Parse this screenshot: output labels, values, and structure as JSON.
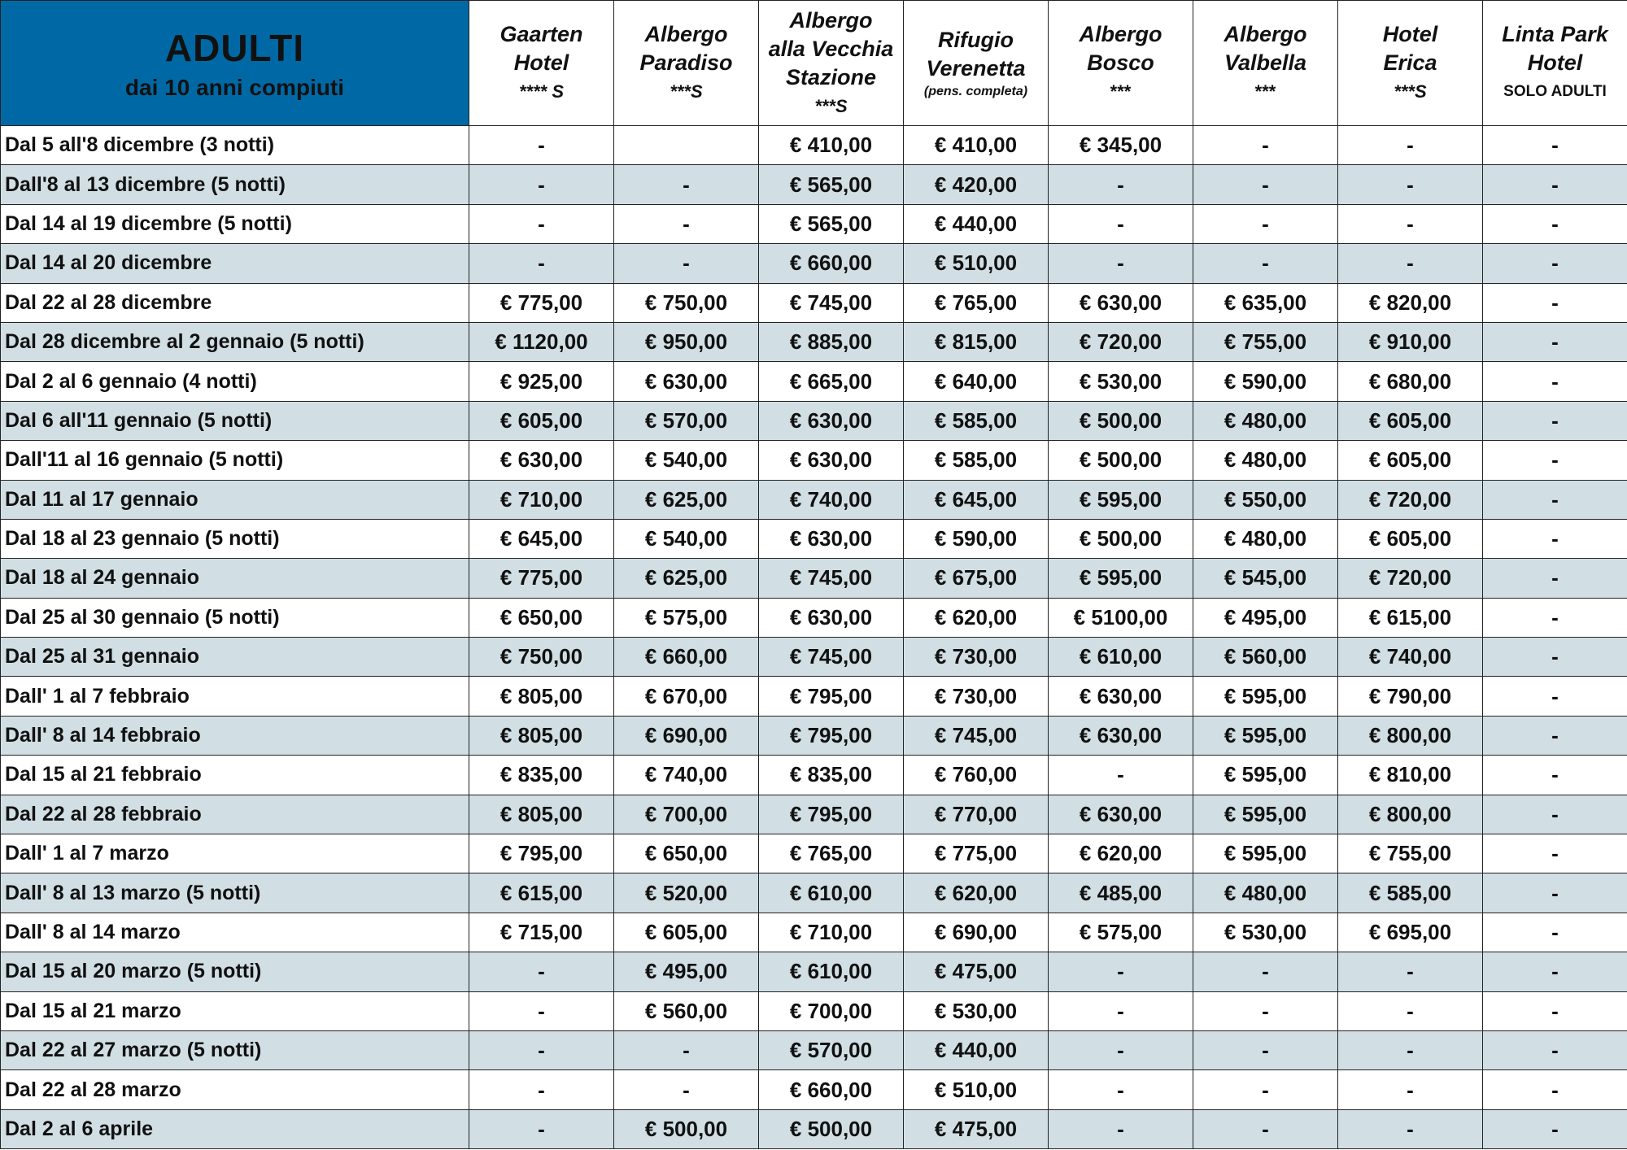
{
  "header": {
    "title": "ADULTI",
    "subtitle": "dai 10 anni compiuti"
  },
  "colors": {
    "header_bg": "#0069a5",
    "alt_row_bg": "#d1dfe4"
  },
  "hotels": [
    {
      "lines": [
        "Gaarten",
        "Hotel"
      ],
      "rating": "**** S"
    },
    {
      "lines": [
        "Albergo",
        "Paradiso"
      ],
      "rating": "***S"
    },
    {
      "lines": [
        "Albergo",
        "alla Vecchia",
        "Stazione"
      ],
      "rating": "***S"
    },
    {
      "lines": [
        "Rifugio",
        "Verenetta"
      ],
      "note": "(pens. completa)"
    },
    {
      "lines": [
        "Albergo",
        "Bosco"
      ],
      "rating": "***"
    },
    {
      "lines": [
        "Albergo",
        "Valbella"
      ],
      "rating": "***"
    },
    {
      "lines": [
        "Hotel",
        "Erica"
      ],
      "rating": "***S"
    },
    {
      "lines": [
        "Linta Park",
        "Hotel"
      ],
      "tag": "SOLO ADULTI"
    }
  ],
  "rows": [
    {
      "period": "Dal 5 all'8 dicembre (3 notti)",
      "prices": [
        "-",
        "",
        "€ 410,00",
        "€ 410,00",
        "€ 345,00",
        "-",
        "-",
        "-"
      ]
    },
    {
      "period": "Dall'8 al 13 dicembre (5 notti)",
      "prices": [
        "-",
        "-",
        "€ 565,00",
        "€ 420,00",
        "-",
        "-",
        "-",
        "-"
      ]
    },
    {
      "period": "Dal 14 al 19 dicembre (5 notti)",
      "prices": [
        "-",
        "-",
        "€ 565,00",
        "€ 440,00",
        "-",
        "-",
        "-",
        "-"
      ]
    },
    {
      "period": "Dal 14 al 20 dicembre",
      "prices": [
        "-",
        "-",
        "€ 660,00",
        "€ 510,00",
        "-",
        "-",
        "-",
        "-"
      ]
    },
    {
      "period": "Dal 22 al 28 dicembre",
      "prices": [
        "€ 775,00",
        "€ 750,00",
        "€ 745,00",
        "€ 765,00",
        "€ 630,00",
        "€ 635,00",
        "€ 820,00",
        "-"
      ]
    },
    {
      "period": "Dal 28 dicembre al 2 gennaio (5 notti)",
      "prices": [
        "€ 1120,00",
        "€ 950,00",
        "€ 885,00",
        "€ 815,00",
        "€ 720,00",
        "€ 755,00",
        "€ 910,00",
        "-"
      ]
    },
    {
      "period": "Dal 2 al 6 gennaio (4 notti)",
      "prices": [
        "€ 925,00",
        "€ 630,00",
        "€ 665,00",
        "€ 640,00",
        "€ 530,00",
        "€ 590,00",
        "€ 680,00",
        "-"
      ]
    },
    {
      "period": "Dal 6 all'11 gennaio (5 notti)",
      "prices": [
        "€ 605,00",
        "€ 570,00",
        "€ 630,00",
        "€ 585,00",
        "€ 500,00",
        "€ 480,00",
        "€ 605,00",
        "-"
      ]
    },
    {
      "period": "Dall'11 al 16 gennaio (5 notti)",
      "prices": [
        "€ 630,00",
        "€ 540,00",
        "€ 630,00",
        "€ 585,00",
        "€ 500,00",
        "€ 480,00",
        "€ 605,00",
        "-"
      ]
    },
    {
      "period": "Dal 11 al 17 gennaio",
      "prices": [
        "€ 710,00",
        "€ 625,00",
        "€ 740,00",
        "€ 645,00",
        "€ 595,00",
        "€ 550,00",
        "€ 720,00",
        "-"
      ]
    },
    {
      "period": "Dal 18 al 23 gennaio (5 notti)",
      "prices": [
        "€ 645,00",
        "€ 540,00",
        "€ 630,00",
        "€ 590,00",
        "€ 500,00",
        "€ 480,00",
        "€ 605,00",
        "-"
      ]
    },
    {
      "period": "Dal 18 al 24 gennaio",
      "prices": [
        "€ 775,00",
        "€ 625,00",
        "€ 745,00",
        "€ 675,00",
        "€ 595,00",
        "€ 545,00",
        "€ 720,00",
        "-"
      ]
    },
    {
      "period": "Dal 25 al 30 gennaio (5 notti)",
      "prices": [
        "€ 650,00",
        "€ 575,00",
        "€ 630,00",
        "€ 620,00",
        "€ 5100,00",
        "€ 495,00",
        "€ 615,00",
        "-"
      ]
    },
    {
      "period": "Dal 25 al 31 gennaio",
      "prices": [
        "€ 750,00",
        "€ 660,00",
        "€ 745,00",
        "€ 730,00",
        "€ 610,00",
        "€ 560,00",
        "€ 740,00",
        "-"
      ]
    },
    {
      "period": "Dall' 1 al 7 febbraio",
      "prices": [
        "€ 805,00",
        "€ 670,00",
        "€ 795,00",
        "€ 730,00",
        "€ 630,00",
        "€ 595,00",
        "€ 790,00",
        "-"
      ]
    },
    {
      "period": "Dall' 8 al 14 febbraio",
      "prices": [
        "€ 805,00",
        "€ 690,00",
        "€ 795,00",
        "€ 745,00",
        "€ 630,00",
        "€ 595,00",
        "€ 800,00",
        "-"
      ]
    },
    {
      "period": "Dal 15 al 21 febbraio",
      "prices": [
        "€ 835,00",
        "€ 740,00",
        "€ 835,00",
        "€ 760,00",
        "-",
        "€ 595,00",
        "€ 810,00",
        "-"
      ]
    },
    {
      "period": "Dal 22 al 28 febbraio",
      "prices": [
        "€ 805,00",
        "€ 700,00",
        "€ 795,00",
        "€ 770,00",
        "€ 630,00",
        "€ 595,00",
        "€ 800,00",
        "-"
      ]
    },
    {
      "period": "Dall' 1 al 7 marzo",
      "prices": [
        "€ 795,00",
        "€ 650,00",
        "€ 765,00",
        "€ 775,00",
        "€ 620,00",
        "€ 595,00",
        "€ 755,00",
        "-"
      ]
    },
    {
      "period": "Dall' 8 al 13 marzo (5 notti)",
      "prices": [
        "€ 615,00",
        "€ 520,00",
        "€ 610,00",
        "€ 620,00",
        "€ 485,00",
        "€ 480,00",
        "€ 585,00",
        "-"
      ]
    },
    {
      "period": "Dall' 8 al 14 marzo",
      "prices": [
        "€ 715,00",
        "€ 605,00",
        "€ 710,00",
        "€ 690,00",
        "€ 575,00",
        "€ 530,00",
        "€ 695,00",
        "-"
      ]
    },
    {
      "period": "Dal 15 al 20 marzo (5 notti)",
      "prices": [
        "-",
        "€ 495,00",
        "€ 610,00",
        "€ 475,00",
        "-",
        "-",
        "-",
        "-"
      ]
    },
    {
      "period": "Dal 15 al 21 marzo",
      "prices": [
        "-",
        "€ 560,00",
        "€ 700,00",
        "€ 530,00",
        "-",
        "-",
        "-",
        "-"
      ]
    },
    {
      "period": "Dal 22 al 27 marzo (5 notti)",
      "prices": [
        "-",
        "-",
        "€ 570,00",
        "€ 440,00",
        "-",
        "-",
        "-",
        "-"
      ]
    },
    {
      "period": "Dal 22 al 28 marzo",
      "prices": [
        "-",
        "-",
        "€ 660,00",
        "€ 510,00",
        "-",
        "-",
        "-",
        "-"
      ]
    },
    {
      "period": "Dal 2 al 6 aprile",
      "prices": [
        "-",
        "€ 500,00",
        "€ 500,00",
        "€ 475,00",
        "-",
        "-",
        "-",
        "-"
      ]
    }
  ]
}
